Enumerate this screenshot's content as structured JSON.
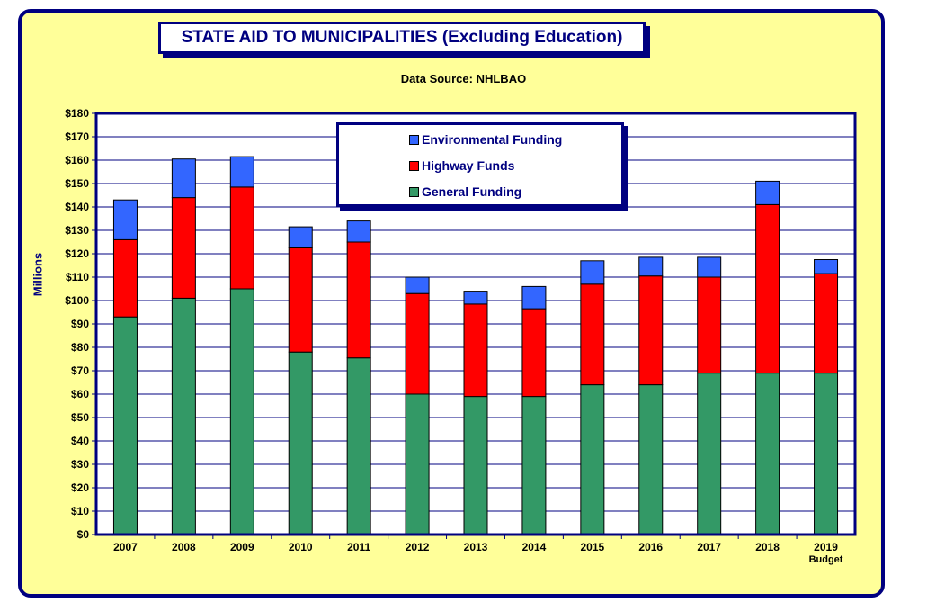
{
  "chart_data": {
    "type": "bar",
    "stacked": true,
    "title": "STATE AID TO MUNICIPALITIES (Excluding Education)",
    "subtitle": "Data Source:  NHLBAO",
    "ylabel": "Millions",
    "ylim": [
      0,
      180
    ],
    "yticks": [
      0,
      10,
      20,
      30,
      40,
      50,
      60,
      70,
      80,
      90,
      100,
      110,
      120,
      130,
      140,
      150,
      160,
      170,
      180
    ],
    "ytick_labels": [
      "$0",
      "$10",
      "$20",
      "$30",
      "$40",
      "$50",
      "$60",
      "$70",
      "$80",
      "$90",
      "$100",
      "$110",
      "$120",
      "$130",
      "$140",
      "$150",
      "$160",
      "$170",
      "$180"
    ],
    "categories": [
      "2007",
      "2008",
      "2009",
      "2010",
      "2011",
      "2012",
      "2013",
      "2014",
      "2015",
      "2016",
      "2017",
      "2018",
      "2019"
    ],
    "category_sublabels": [
      "",
      "",
      "",
      "",
      "",
      "",
      "",
      "",
      "",
      "",
      "",
      "",
      "Budget"
    ],
    "series": [
      {
        "name": "General Funding",
        "color": "#339966",
        "values": [
          93,
          101,
          105,
          78,
          75.5,
          60,
          59,
          59,
          64,
          64,
          69,
          69,
          69
        ]
      },
      {
        "name": "Highway Funds",
        "color": "#ff0000",
        "values": [
          33,
          43,
          43.5,
          44.5,
          49.5,
          43,
          39.5,
          37.5,
          43,
          46.5,
          41,
          72,
          42.5
        ]
      },
      {
        "name": "Environmental Funding",
        "color": "#3366ff",
        "values": [
          17,
          16.5,
          13,
          9,
          9,
          7,
          5.5,
          9.5,
          10,
          8,
          8.5,
          10,
          6
        ]
      }
    ],
    "legend_order": [
      "Environmental Funding",
      "Highway Funds",
      "General Funding"
    ],
    "grid": true,
    "legend_position": "top-center"
  }
}
